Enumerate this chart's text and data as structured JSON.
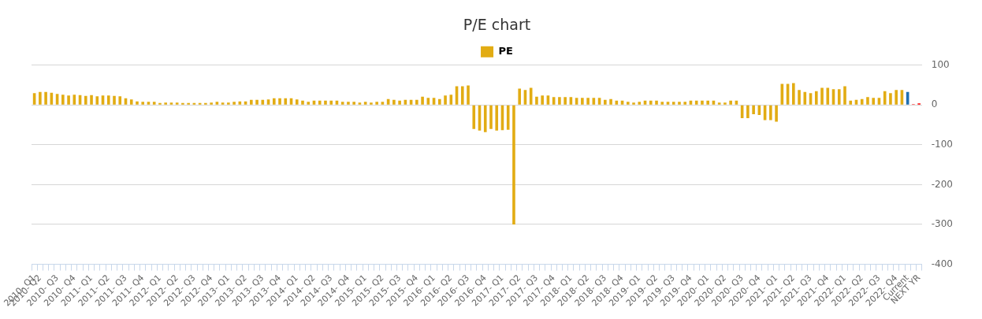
{
  "chart_data": {
    "type": "bar",
    "title": "P/E chart",
    "categories": [
      "2010- Q1",
      "2010- Q2",
      null,
      null,
      "2010- Q3",
      null,
      null,
      "2010- Q4",
      null,
      null,
      "2011- Q1",
      null,
      null,
      "2011- Q2",
      null,
      null,
      "2011- Q3",
      null,
      null,
      "2011- Q4",
      null,
      null,
      "2012- Q1",
      null,
      null,
      "2012- Q2",
      null,
      null,
      "2012- Q3",
      null,
      null,
      "2012- Q4",
      null,
      null,
      "2013- Q1",
      null,
      null,
      "2013- Q2",
      null,
      null,
      "2013- Q3",
      null,
      null,
      "2013- Q4",
      null,
      null,
      "2014- Q1",
      null,
      null,
      "2014- Q2",
      null,
      null,
      "2014- Q3",
      null,
      null,
      "2014- Q4",
      null,
      null,
      "2015- Q1",
      null,
      null,
      "2015- Q2",
      null,
      null,
      "2015- Q3",
      null,
      null,
      "2015- Q4",
      null,
      null,
      "2016- Q1",
      null,
      null,
      "2016- Q2",
      null,
      null,
      "2016- Q3",
      null,
      null,
      "2016- Q4",
      null,
      null,
      "2017- Q1",
      null,
      null,
      "2017- Q2",
      null,
      null,
      "2017- Q3",
      null,
      null,
      "2017- Q4",
      null,
      null,
      "2018- Q1",
      null,
      null,
      "2018- Q2",
      null,
      null,
      "2018- Q3",
      null,
      null,
      "2018- Q4",
      null,
      null,
      "2019- Q1",
      null,
      null,
      "2019- Q2",
      null,
      null,
      "2019- Q3",
      null,
      null,
      "2019- Q4",
      null,
      null,
      "2020- Q1",
      null,
      null,
      "2020- Q2",
      null,
      null,
      "2020- Q3",
      null,
      null,
      "2020- Q4",
      null,
      null,
      "2021- Q1",
      null,
      null,
      "2021- Q2",
      null,
      null,
      "2021- Q3",
      null,
      null,
      "2021- Q4",
      null,
      null,
      "2022- Q1",
      null,
      null,
      "2022- Q2",
      null,
      null,
      "2022- Q3",
      null,
      null,
      "2022- Q4",
      null,
      "Current",
      null,
      "NEXT YR"
    ],
    "series": [
      {
        "name": "PE",
        "color": "#e2ac13",
        "values": [
          30,
          33,
          33,
          31,
          28,
          26,
          24,
          26,
          25,
          23,
          25,
          22,
          24,
          24,
          23,
          22,
          17,
          14,
          9,
          8,
          8,
          8,
          5,
          6,
          6,
          6,
          5,
          5,
          5,
          5,
          5,
          6,
          8,
          6,
          6,
          8,
          9,
          9,
          13,
          13,
          13,
          14,
          17,
          17,
          17,
          17,
          14,
          11,
          8,
          11,
          11,
          11,
          11,
          11,
          8,
          8,
          8,
          6,
          8,
          6,
          8,
          8,
          15,
          13,
          11,
          13,
          13,
          13,
          21,
          18,
          18,
          15,
          24,
          26,
          47,
          47,
          49,
          -60,
          -64,
          -68,
          -60,
          -64,
          -63,
          -62,
          -300,
          41,
          38,
          43,
          21,
          24,
          24,
          20,
          20,
          20,
          20,
          18,
          18,
          18,
          18,
          18,
          13,
          15,
          11,
          11,
          8,
          6,
          8,
          11,
          11,
          11,
          8,
          8,
          8,
          8,
          8,
          11,
          11,
          11,
          11,
          11,
          6,
          6,
          11,
          11,
          -33,
          -33,
          -23,
          -25,
          -38,
          -38,
          -42,
          53,
          53,
          55,
          38,
          33,
          30,
          35,
          43,
          43,
          40,
          40,
          47,
          11,
          13,
          15,
          20,
          18,
          18,
          35,
          30,
          38,
          38,
          null,
          null,
          null
        ]
      },
      {
        "color": "#1f6fb2",
        "values": [
          null,
          null,
          null,
          null,
          null,
          null,
          null,
          null,
          null,
          null,
          null,
          null,
          null,
          null,
          null,
          null,
          null,
          null,
          null,
          null,
          null,
          null,
          null,
          null,
          null,
          null,
          null,
          null,
          null,
          null,
          null,
          null,
          null,
          null,
          null,
          null,
          null,
          null,
          null,
          null,
          null,
          null,
          null,
          null,
          null,
          null,
          null,
          null,
          null,
          null,
          null,
          null,
          null,
          null,
          null,
          null,
          null,
          null,
          null,
          null,
          null,
          null,
          null,
          null,
          null,
          null,
          null,
          null,
          null,
          null,
          null,
          null,
          null,
          null,
          null,
          null,
          null,
          null,
          null,
          null,
          null,
          null,
          null,
          null,
          null,
          null,
          null,
          null,
          null,
          null,
          null,
          null,
          null,
          null,
          null,
          null,
          null,
          null,
          null,
          null,
          null,
          null,
          null,
          null,
          null,
          null,
          null,
          null,
          null,
          null,
          null,
          null,
          null,
          null,
          null,
          null,
          null,
          null,
          null,
          null,
          null,
          null,
          null,
          null,
          null,
          null,
          null,
          null,
          null,
          null,
          null,
          null,
          null,
          null,
          null,
          null,
          null,
          null,
          null,
          null,
          null,
          null,
          null,
          null,
          null,
          null,
          null,
          null,
          null,
          null,
          null,
          null,
          null,
          33,
          null,
          null
        ]
      },
      {
        "color": "#ff0000",
        "values": [
          null,
          null,
          null,
          null,
          null,
          null,
          null,
          null,
          null,
          null,
          null,
          null,
          null,
          null,
          null,
          null,
          null,
          null,
          null,
          null,
          null,
          null,
          null,
          null,
          null,
          null,
          null,
          null,
          null,
          null,
          null,
          null,
          null,
          null,
          null,
          null,
          null,
          null,
          null,
          null,
          null,
          null,
          null,
          null,
          null,
          null,
          null,
          null,
          null,
          null,
          null,
          null,
          null,
          null,
          null,
          null,
          null,
          null,
          null,
          null,
          null,
          null,
          null,
          null,
          null,
          null,
          null,
          null,
          null,
          null,
          null,
          null,
          null,
          null,
          null,
          null,
          null,
          null,
          null,
          null,
          null,
          null,
          null,
          null,
          null,
          null,
          null,
          null,
          null,
          null,
          null,
          null,
          null,
          null,
          null,
          null,
          null,
          null,
          null,
          null,
          null,
          null,
          null,
          null,
          null,
          null,
          null,
          null,
          null,
          null,
          null,
          null,
          null,
          null,
          null,
          null,
          null,
          null,
          null,
          null,
          null,
          null,
          null,
          null,
          null,
          null,
          null,
          null,
          null,
          null,
          null,
          null,
          null,
          null,
          null,
          null,
          null,
          null,
          null,
          null,
          null,
          null,
          null,
          null,
          null,
          null,
          null,
          null,
          null,
          null,
          null,
          null,
          null,
          null,
          2,
          4
        ]
      }
    ],
    "colors": [
      "#e2ac13",
      "#e2ac13",
      "#e2ac13",
      "#e2ac13",
      "#e2ac13",
      "#e2ac13",
      "#e2ac13",
      "#e2ac13",
      "#e2ac13",
      "#e2ac13",
      "#e2ac13",
      "#e2ac13",
      "#e2ac13",
      "#e2ac13",
      "#e2ac13",
      "#e2ac13",
      "#e2ac13",
      "#e2ac13",
      "#e2ac13",
      "#e2ac13",
      "#e2ac13",
      "#e2ac13",
      "#e2ac13",
      "#e2ac13",
      "#e2ac13",
      "#e2ac13",
      "#e2ac13",
      "#e2ac13",
      "#e2ac13",
      "#e2ac13",
      "#e2ac13",
      "#e2ac13",
      "#e2ac13",
      "#e2ac13",
      "#e2ac13",
      "#e2ac13",
      "#e2ac13",
      "#e2ac13",
      "#e2ac13",
      "#e2ac13",
      "#e2ac13",
      "#e2ac13",
      "#e2ac13",
      "#e2ac13",
      "#e2ac13",
      "#e2ac13",
      "#e2ac13",
      "#e2ac13",
      "#e2ac13",
      "#e2ac13",
      "#e2ac13",
      "#e2ac13",
      "#e2ac13",
      "#e2ac13",
      "#e2ac13",
      "#e2ac13",
      "#e2ac13",
      "#e2ac13",
      "#e2ac13",
      "#e2ac13",
      "#e2ac13",
      "#e2ac13",
      "#e2ac13",
      "#e2ac13",
      "#e2ac13",
      "#e2ac13",
      "#e2ac13",
      "#e2ac13",
      "#e2ac13",
      "#e2ac13",
      "#e2ac13",
      "#e2ac13",
      "#e2ac13",
      "#e2ac13",
      "#e2ac13",
      "#e2ac13",
      "#e2ac13",
      "#e2ac13",
      "#e2ac13",
      "#e2ac13",
      "#e2ac13",
      "#e2ac13",
      "#e2ac13",
      "#e2ac13",
      "#e2ac13",
      "#e2ac13",
      "#e2ac13",
      "#e2ac13",
      "#e2ac13",
      "#e2ac13",
      "#e2ac13",
      "#e2ac13",
      "#e2ac13",
      "#e2ac13",
      "#e2ac13",
      "#e2ac13",
      "#e2ac13",
      "#e2ac13",
      "#e2ac13",
      "#e2ac13",
      "#e2ac13",
      "#e2ac13",
      "#e2ac13",
      "#e2ac13",
      "#e2ac13",
      "#e2ac13",
      "#e2ac13",
      "#e2ac13",
      "#e2ac13",
      "#e2ac13",
      "#e2ac13",
      "#e2ac13",
      "#e2ac13",
      "#e2ac13",
      "#e2ac13",
      "#e2ac13",
      "#e2ac13",
      "#e2ac13",
      "#e2ac13",
      "#e2ac13",
      "#e2ac13",
      "#e2ac13",
      "#e2ac13",
      "#e2ac13",
      "#e2ac13",
      "#e2ac13",
      "#e2ac13",
      "#e2ac13",
      "#e2ac13",
      "#e2ac13",
      "#e2ac13",
      "#e2ac13",
      "#e2ac13",
      "#e2ac13",
      "#e2ac13",
      "#e2ac13",
      "#e2ac13",
      "#e2ac13",
      "#e2ac13",
      "#e2ac13",
      "#e2ac13",
      "#e2ac13",
      "#e2ac13",
      "#e2ac13",
      "#e2ac13",
      "#e2ac13",
      "#e2ac13",
      "#e2ac13",
      "#e2ac13",
      "#e2ac13",
      "#e2ac13",
      "#e2ac13",
      "#e2ac13",
      "#1f6fb2",
      "#ff0000",
      "#ff0000"
    ],
    "ylim": [
      -400,
      100
    ],
    "yticks": [
      100,
      0,
      -100,
      -200,
      -300,
      -400
    ],
    "grid": "y",
    "legend": "top"
  }
}
